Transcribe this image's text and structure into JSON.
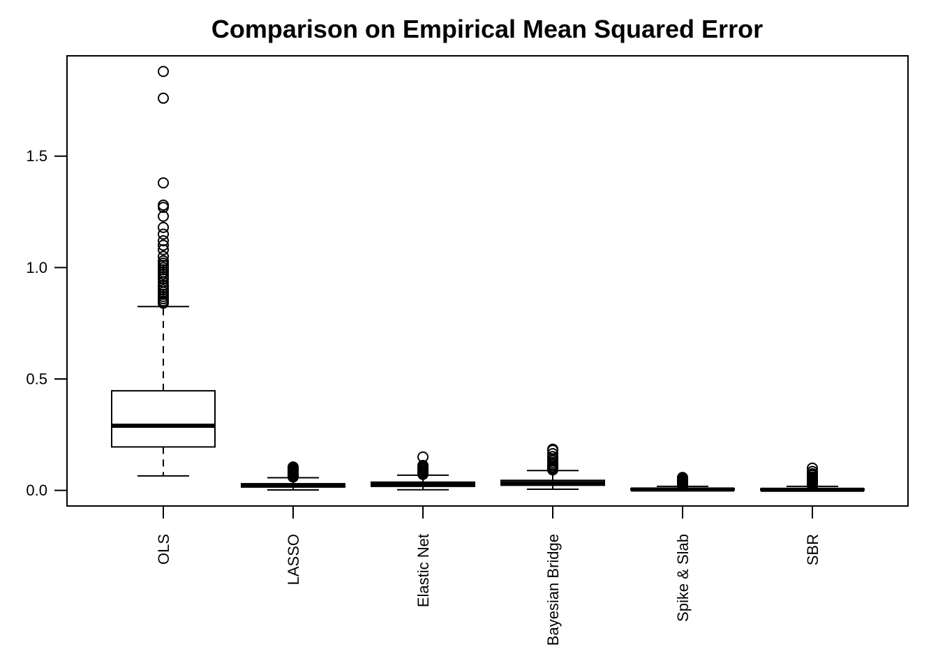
{
  "chart_data": {
    "type": "box",
    "title": "Comparison on Empirical Mean Squared Error",
    "xlabel": "",
    "ylabel": "",
    "ylim": [
      -0.07,
      1.95
    ],
    "y_ticks": [
      "0.0",
      "0.5",
      "1.0",
      "1.5"
    ],
    "grid": false,
    "categories": [
      "OLS",
      "LASSO",
      "Elastic Net",
      "Bayesian Bridge",
      "Spike & Slab",
      "SBR"
    ],
    "boxes": [
      {
        "name": "OLS",
        "whisker_low": 0.065,
        "q1": 0.195,
        "median": 0.29,
        "q3": 0.447,
        "whisker_high": 0.825,
        "outliers": [
          0.84,
          0.845,
          0.85,
          0.86,
          0.87,
          0.88,
          0.89,
          0.9,
          0.91,
          0.92,
          0.935,
          0.95,
          0.96,
          0.97,
          0.98,
          0.99,
          1.0,
          1.01,
          1.02,
          1.03,
          1.05,
          1.08,
          1.1,
          1.12,
          1.15,
          1.18,
          1.23,
          1.27,
          1.28,
          1.38,
          1.76,
          1.88
        ]
      },
      {
        "name": "LASSO",
        "whisker_low": 0.002,
        "q1": 0.015,
        "median": 0.022,
        "q3": 0.03,
        "whisker_high": 0.057,
        "outliers": [
          0.06,
          0.065,
          0.07,
          0.075,
          0.08,
          0.085,
          0.09,
          0.095,
          0.1,
          0.105
        ]
      },
      {
        "name": "Elastic Net",
        "whisker_low": 0.003,
        "q1": 0.018,
        "median": 0.026,
        "q3": 0.037,
        "whisker_high": 0.068,
        "outliers": [
          0.072,
          0.078,
          0.082,
          0.088,
          0.095,
          0.1,
          0.106,
          0.112,
          0.15
        ]
      },
      {
        "name": "Bayesian Bridge",
        "whisker_low": 0.005,
        "q1": 0.023,
        "median": 0.032,
        "q3": 0.045,
        "whisker_high": 0.089,
        "outliers": [
          0.092,
          0.097,
          0.103,
          0.11,
          0.117,
          0.125,
          0.133,
          0.142,
          0.152,
          0.165,
          0.18,
          0.185
        ]
      },
      {
        "name": "Spike & Slab",
        "whisker_low": 0.0,
        "q1": 0.002,
        "median": 0.004,
        "q3": 0.008,
        "whisker_high": 0.018,
        "outliers": [
          0.02,
          0.025,
          0.03,
          0.035,
          0.04,
          0.045,
          0.05,
          0.055,
          0.058
        ]
      },
      {
        "name": "SBR",
        "whisker_low": 0.0,
        "q1": 0.001,
        "median": 0.003,
        "q3": 0.007,
        "whisker_high": 0.018,
        "outliers": [
          0.02,
          0.024,
          0.028,
          0.032,
          0.036,
          0.04,
          0.045,
          0.05,
          0.055,
          0.06,
          0.068,
          0.075,
          0.085,
          0.1
        ]
      }
    ],
    "colors": {
      "stroke": "#000000",
      "box_fill": "#ffffff",
      "background": "#ffffff"
    }
  }
}
